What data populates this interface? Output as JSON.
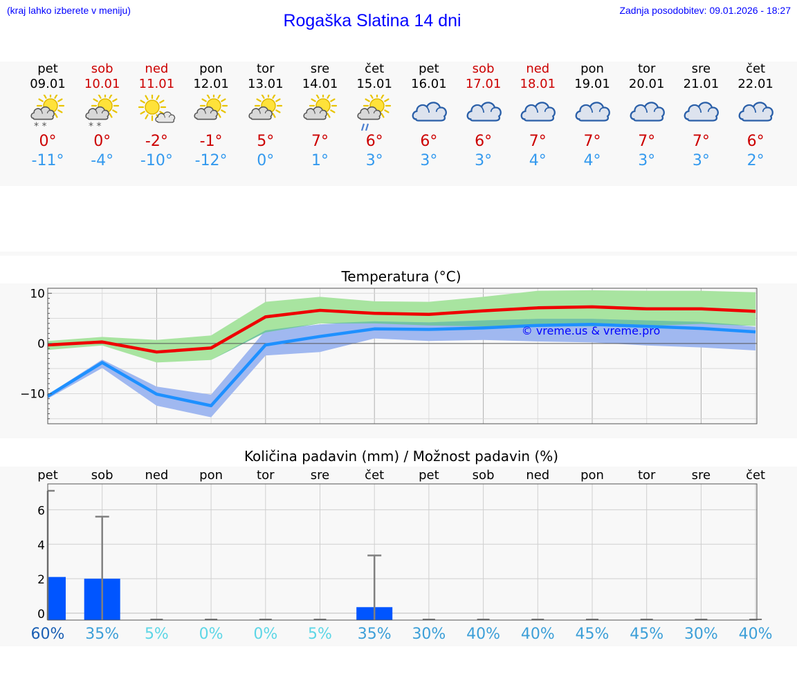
{
  "header": {
    "left_note": "(kraj lahko izberete v meniju)",
    "title": "Rogaška Slatina 14 dni",
    "updated": "Zadnja posodobitev: 09.01.2026 - 18:27"
  },
  "days": [
    {
      "name": "pet",
      "date": "09.01",
      "weekend": false,
      "icon": "sun-cloud-snow-icon",
      "tmax": "0°",
      "tmin": "-11°"
    },
    {
      "name": "sob",
      "date": "10.01",
      "weekend": true,
      "icon": "sun-cloud-snow-icon",
      "tmax": "0°",
      "tmin": "-4°"
    },
    {
      "name": "ned",
      "date": "11.01",
      "weekend": true,
      "icon": "sun-small-cloud-icon",
      "tmax": "-2°",
      "tmin": "-10°"
    },
    {
      "name": "pon",
      "date": "12.01",
      "weekend": false,
      "icon": "sun-cloud-icon",
      "tmax": "-1°",
      "tmin": "-12°"
    },
    {
      "name": "tor",
      "date": "13.01",
      "weekend": false,
      "icon": "sun-cloud-icon",
      "tmax": "5°",
      "tmin": "0°"
    },
    {
      "name": "sre",
      "date": "14.01",
      "weekend": false,
      "icon": "sun-cloud-icon",
      "tmax": "7°",
      "tmin": "1°"
    },
    {
      "name": "čet",
      "date": "15.01",
      "weekend": false,
      "icon": "sun-cloud-rain-icon",
      "tmax": "6°",
      "tmin": "3°"
    },
    {
      "name": "pet",
      "date": "16.01",
      "weekend": false,
      "icon": "cloudy-icon",
      "tmax": "6°",
      "tmin": "3°"
    },
    {
      "name": "sob",
      "date": "17.01",
      "weekend": true,
      "icon": "cloudy-icon",
      "tmax": "6°",
      "tmin": "3°"
    },
    {
      "name": "ned",
      "date": "18.01",
      "weekend": true,
      "icon": "cloudy-icon",
      "tmax": "7°",
      "tmin": "4°"
    },
    {
      "name": "pon",
      "date": "19.01",
      "weekend": false,
      "icon": "cloudy-icon",
      "tmax": "7°",
      "tmin": "4°"
    },
    {
      "name": "tor",
      "date": "20.01",
      "weekend": false,
      "icon": "cloudy-icon",
      "tmax": "7°",
      "tmin": "3°"
    },
    {
      "name": "sre",
      "date": "21.01",
      "weekend": false,
      "icon": "cloudy-icon",
      "tmax": "7°",
      "tmin": "3°"
    },
    {
      "name": "čet",
      "date": "22.01",
      "weekend": false,
      "icon": "cloudy-icon",
      "tmax": "6°",
      "tmin": "2°"
    }
  ],
  "colors": {
    "weekend": "#cc0000",
    "weekday": "#000000",
    "tmax": "#cc0000",
    "tmin": "#3399ee",
    "max_line": "#ee0000",
    "min_line": "#1e90ff",
    "max_band": "#a8e4a0",
    "min_band": "#a0b8f0",
    "overlap_band": "#72c4a4",
    "bar": "#0055ff",
    "whisker": "#808080",
    "watermark": "#0000ff"
  },
  "chart_data": [
    {
      "type": "line",
      "title": "Temperatura (°C)",
      "ylabel": "°C",
      "ylim": [
        -16,
        11
      ],
      "yticks": [
        -10,
        0,
        10
      ],
      "categories": [
        "09.01",
        "10.01",
        "11.01",
        "12.01",
        "13.01",
        "14.01",
        "15.01",
        "16.01",
        "17.01",
        "18.01",
        "19.01",
        "20.01",
        "21.01",
        "22.01"
      ],
      "watermark": "© vreme.us & vreme.pro",
      "series": [
        {
          "name": "max",
          "values": [
            -0.3,
            0.3,
            -1.7,
            -0.9,
            5.3,
            6.6,
            6.0,
            5.8,
            6.5,
            7.1,
            7.3,
            6.9,
            6.9,
            6.4
          ],
          "band_low": [
            -1.3,
            -0.4,
            -3.8,
            -3.3,
            2.2,
            4.0,
            4.0,
            3.6,
            3.4,
            3.4,
            3.4,
            3.5,
            3.9,
            3.5
          ],
          "band_high": [
            0.5,
            1.3,
            0.7,
            1.6,
            8.3,
            9.3,
            8.4,
            8.3,
            9.3,
            10.5,
            10.6,
            10.5,
            10.5,
            10.2
          ]
        },
        {
          "name": "min",
          "values": [
            -10.5,
            -3.8,
            -10.1,
            -12.4,
            -0.3,
            1.4,
            2.9,
            2.8,
            3.1,
            3.6,
            3.8,
            3.4,
            3.0,
            2.3
          ],
          "band_low": [
            -11.0,
            -4.9,
            -12.4,
            -14.7,
            -2.4,
            -1.7,
            1.0,
            0.5,
            0.7,
            0.4,
            0.2,
            -0.4,
            -0.8,
            -1.4
          ],
          "band_high": [
            -10.2,
            -3.2,
            -8.6,
            -10.2,
            2.6,
            3.8,
            4.4,
            4.2,
            4.6,
            4.9,
            4.9,
            4.6,
            4.3,
            3.3
          ]
        }
      ]
    },
    {
      "type": "bar",
      "title": "Količina padavin (mm) / Možnost padavin (%)",
      "ylabel": "mm",
      "ylim": [
        -0.4,
        7.5
      ],
      "yticks": [
        0,
        2,
        4,
        6
      ],
      "categories": [
        "pet",
        "sob",
        "ned",
        "pon",
        "tor",
        "sre",
        "čet",
        "pet",
        "sob",
        "ned",
        "pon",
        "tor",
        "sre",
        "čet"
      ],
      "values": [
        2.1,
        2.0,
        0,
        0,
        0,
        0,
        0.35,
        0,
        0,
        0,
        0,
        0,
        0,
        0
      ],
      "max_values": [
        7.1,
        5.6,
        0,
        0,
        0,
        0,
        3.35,
        0,
        0,
        0,
        0,
        0,
        0,
        0
      ],
      "probability": [
        "60%",
        "35%",
        "5%",
        "0%",
        "0%",
        "5%",
        "35%",
        "30%",
        "40%",
        "40%",
        "45%",
        "45%",
        "30%",
        "40%"
      ],
      "probability_colors": [
        "#1a5fb4",
        "#3c9fd8",
        "#5dd6e6",
        "#5dd6e6",
        "#5dd6e6",
        "#5dd6e6",
        "#3c9fd8",
        "#3c9fd8",
        "#3c9fd8",
        "#3c9fd8",
        "#3c9fd8",
        "#3c9fd8",
        "#3c9fd8",
        "#3c9fd8"
      ]
    }
  ]
}
